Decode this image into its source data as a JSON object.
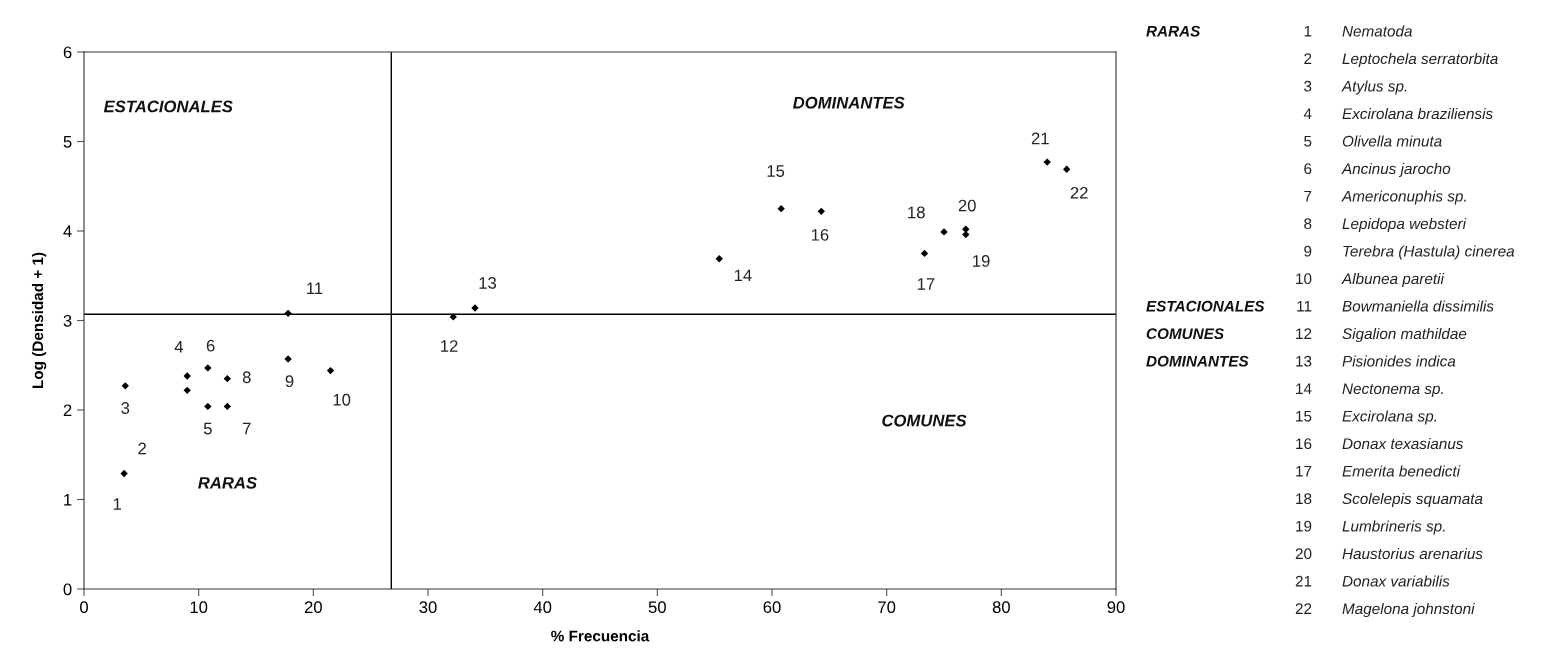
{
  "chart_data": {
    "type": "scatter",
    "xlabel": "% Frecuencia",
    "ylabel": "Log (Densidad + 1)",
    "x": [
      3.5,
      3.6,
      9.0,
      9.0,
      10.8,
      10.8,
      12.5,
      12.5,
      17.8,
      21.5,
      17.8,
      32.2,
      34.1,
      55.4,
      60.8,
      64.3,
      73.3,
      75.0,
      76.9,
      76.9,
      84.0,
      85.7
    ],
    "values": [
      1.29,
      2.27,
      2.38,
      2.22,
      2.47,
      2.04,
      2.35,
      2.04,
      2.57,
      2.44,
      3.08,
      3.04,
      3.14,
      3.69,
      4.25,
      4.22,
      3.75,
      3.99,
      3.96,
      4.02,
      4.77,
      4.69
    ],
    "color": "#000000",
    "marker": "diamond",
    "legend": false,
    "grid": false,
    "xlim": [
      0,
      90
    ],
    "xticks": [
      0,
      10,
      20,
      30,
      40,
      50,
      60,
      70,
      80,
      90
    ],
    "ylim": [
      0,
      6
    ],
    "yticks": [
      0,
      1,
      2,
      3,
      4,
      5,
      6
    ],
    "ref_lines": [
      {
        "axis": "x",
        "value": 26.8,
        "color": "#000000"
      },
      {
        "axis": "y",
        "value": 3.07,
        "color": "#000000"
      }
    ],
    "annotations": [
      {
        "text": "1",
        "x": 3.5,
        "y": 1.29
      },
      {
        "text": "2",
        "x": 3.5,
        "y": 1.29
      },
      {
        "text": "3",
        "x": 3.6,
        "y": 2.27
      },
      {
        "text": "4",
        "x": 9.0,
        "y": 2.38
      },
      {
        "text": "5",
        "x": 10.8,
        "y": 2.04
      },
      {
        "text": "6",
        "x": 10.8,
        "y": 2.47
      },
      {
        "text": "7",
        "x": 12.5,
        "y": 2.04
      },
      {
        "text": "8",
        "x": 12.5,
        "y": 2.35
      },
      {
        "text": "9",
        "x": 17.8,
        "y": 2.57
      },
      {
        "text": "10",
        "x": 21.5,
        "y": 2.44
      },
      {
        "text": "11",
        "x": 17.8,
        "y": 3.08
      },
      {
        "text": "12",
        "x": 32.2,
        "y": 3.04
      },
      {
        "text": "13",
        "x": 34.1,
        "y": 3.14
      },
      {
        "text": "14",
        "x": 55.4,
        "y": 3.69
      },
      {
        "text": "15",
        "x": 60.8,
        "y": 4.25
      },
      {
        "text": "16",
        "x": 64.3,
        "y": 4.22
      },
      {
        "text": "17",
        "x": 73.3,
        "y": 3.75
      },
      {
        "text": "18",
        "x": 75.0,
        "y": 3.99
      },
      {
        "text": "19",
        "x": 76.9,
        "y": 3.96
      },
      {
        "text": "20",
        "x": 76.9,
        "y": 4.02
      },
      {
        "text": "21",
        "x": 84.0,
        "y": 4.77
      },
      {
        "text": "22",
        "x": 85.7,
        "y": 4.69
      },
      "ESTACIONALES",
      "DOMINANTES",
      "RARAS",
      "COMUNES",
      "RARAS",
      "ESTACIONALES",
      "COMUNES",
      "DOMINANTES",
      "1 Nematoda",
      "2 Leptochela serratorbita",
      "3 Atylus sp.",
      "4 Excirolana braziliensis",
      "5 Olivella minuta",
      "6 Ancinus jarocho",
      "7 Americonuphis sp.",
      "8 Lepidopa websteri",
      "9 Terebra (Hastula) cinerea",
      "10 Albunea paretii",
      "11 Bowmaniella dissimilis",
      "12 Sigalion mathildae",
      "13 Pisionides indica",
      "14 Nectonema sp.",
      "15 Excirolana sp.",
      "16 Donax texasianus",
      "17 Emerita benedicti",
      "18 Scolelepis squamata",
      "19 Lumbrineris sp.",
      "20 Haustorius arenarius",
      "21 Donax variabilis",
      "22 Magelona johnstoni"
    ]
  }
}
